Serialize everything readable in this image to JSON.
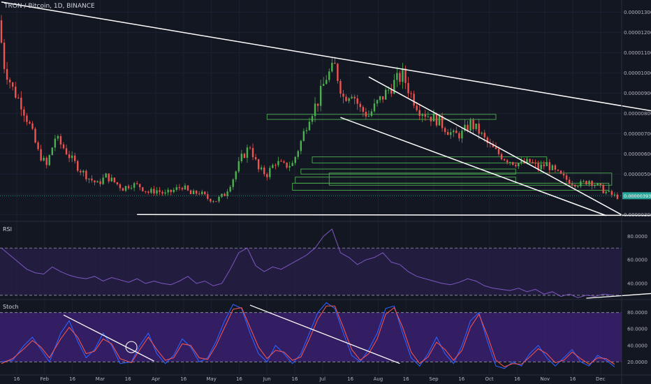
{
  "header": {
    "symbol_label": "TRON / Bitcoin, 1D, BINANCE"
  },
  "panes": {
    "rsi_label": "RSI",
    "stoch_label": "Stoch"
  },
  "colors": {
    "background": "#131722",
    "candle_up": "#26a69a",
    "candle_down": "#ef5350",
    "candle_up_bright": "#4caf50",
    "rsi_line": "#7e57c2",
    "rsi_band_fill": "#2a1f4a",
    "stoch_k": "#2962ff",
    "stoch_d": "#ef5350",
    "stoch_band_fill": "#3a1f6e",
    "trendline": "#ffffff",
    "zone_box": "#4caf50",
    "current_price_badge": "#26a69a"
  },
  "chart_data": {
    "type": "candlestick",
    "x_axis_labels": [
      "16",
      "Feb",
      "16",
      "Mar",
      "16",
      "Apr",
      "16",
      "May",
      "16",
      "Jun",
      "16",
      "Jul",
      "16",
      "Aug",
      "16",
      "Sep",
      "16",
      "Oct",
      "16",
      "Nov",
      "16",
      "Dec"
    ],
    "price_axis": {
      "ticks": [
        "0.00001300",
        "0.00001200",
        "0.00001100",
        "0.00001000",
        "0.00000900",
        "0.00000800",
        "0.00000700",
        "0.00000600",
        "0.00000500",
        "0.00000400",
        "0.00000300"
      ],
      "current_price_label": "0.00000393",
      "ylim": [
        2.7e-06,
        1.36e-05
      ]
    },
    "price_path": [
      [
        0,
        12.6
      ],
      [
        2,
        10.4
      ],
      [
        5,
        9.2
      ],
      [
        8,
        8.5
      ],
      [
        11,
        7.4
      ],
      [
        14,
        6.1
      ],
      [
        17,
        5.4
      ],
      [
        20,
        6.8
      ],
      [
        23,
        6.3
      ],
      [
        26,
        5.7
      ],
      [
        29,
        5.2
      ],
      [
        32,
        4.8
      ],
      [
        35,
        4.5
      ],
      [
        38,
        4.9
      ],
      [
        41,
        4.6
      ],
      [
        44,
        4.3
      ],
      [
        47,
        4.5
      ],
      [
        50,
        4.4
      ],
      [
        53,
        4.1
      ],
      [
        56,
        4.2
      ],
      [
        59,
        4.0
      ],
      [
        62,
        4.2
      ],
      [
        65,
        4.4
      ],
      [
        68,
        4.0
      ],
      [
        71,
        4.1
      ],
      [
        74,
        3.8
      ],
      [
        77,
        3.7
      ],
      [
        80,
        4.0
      ],
      [
        83,
        4.8
      ],
      [
        86,
        5.8
      ],
      [
        89,
        6.4
      ],
      [
        92,
        5.2
      ],
      [
        95,
        5.0
      ],
      [
        98,
        5.6
      ],
      [
        101,
        5.4
      ],
      [
        104,
        5.5
      ],
      [
        107,
        6.6
      ],
      [
        110,
        7.9
      ],
      [
        113,
        8.6
      ],
      [
        116,
        9.8
      ],
      [
        119,
        10.3
      ],
      [
        122,
        8.8
      ],
      [
        125,
        9.1
      ],
      [
        128,
        8.2
      ],
      [
        131,
        7.9
      ],
      [
        134,
        8.5
      ],
      [
        137,
        9.0
      ],
      [
        140,
        9.5
      ],
      [
        143,
        9.9
      ],
      [
        146,
        8.9
      ],
      [
        149,
        8.2
      ],
      [
        152,
        7.9
      ],
      [
        155,
        7.7
      ],
      [
        158,
        7.3
      ],
      [
        161,
        6.9
      ],
      [
        164,
        7.0
      ],
      [
        167,
        7.5
      ],
      [
        170,
        7.1
      ],
      [
        173,
        6.5
      ],
      [
        176,
        6.1
      ],
      [
        179,
        5.8
      ],
      [
        182,
        5.6
      ],
      [
        185,
        5.5
      ],
      [
        188,
        5.6
      ],
      [
        191,
        5.3
      ],
      [
        194,
        5.5
      ],
      [
        197,
        5.1
      ],
      [
        200,
        4.8
      ],
      [
        203,
        4.6
      ],
      [
        206,
        4.5
      ],
      [
        209,
        4.7
      ],
      [
        212,
        4.4
      ],
      [
        215,
        4.1
      ],
      [
        218,
        3.9
      ]
    ],
    "rsi": {
      "levels": [
        "80.0000",
        "60.0000",
        "40.0000"
      ],
      "ylim": [
        27,
        92
      ],
      "upper_band": 70,
      "lower_band": 30,
      "values": [
        [
          0,
          70
        ],
        [
          3,
          64
        ],
        [
          6,
          58
        ],
        [
          9,
          52
        ],
        [
          12,
          49
        ],
        [
          15,
          48
        ],
        [
          18,
          54
        ],
        [
          21,
          50
        ],
        [
          24,
          47
        ],
        [
          27,
          45
        ],
        [
          30,
          44
        ],
        [
          33,
          46
        ],
        [
          36,
          42
        ],
        [
          39,
          45
        ],
        [
          42,
          43
        ],
        [
          45,
          41
        ],
        [
          48,
          44
        ],
        [
          51,
          40
        ],
        [
          54,
          42
        ],
        [
          57,
          40
        ],
        [
          60,
          39
        ],
        [
          63,
          42
        ],
        [
          66,
          46
        ],
        [
          69,
          40
        ],
        [
          72,
          42
        ],
        [
          75,
          38
        ],
        [
          78,
          40
        ],
        [
          81,
          52
        ],
        [
          84,
          66
        ],
        [
          87,
          70
        ],
        [
          90,
          55
        ],
        [
          93,
          50
        ],
        [
          96,
          54
        ],
        [
          99,
          52
        ],
        [
          102,
          56
        ],
        [
          105,
          60
        ],
        [
          108,
          64
        ],
        [
          111,
          70
        ],
        [
          114,
          80
        ],
        [
          117,
          86
        ],
        [
          120,
          66
        ],
        [
          123,
          62
        ],
        [
          126,
          56
        ],
        [
          129,
          60
        ],
        [
          132,
          62
        ],
        [
          135,
          66
        ],
        [
          138,
          58
        ],
        [
          141,
          56
        ],
        [
          144,
          50
        ],
        [
          147,
          46
        ],
        [
          150,
          44
        ],
        [
          153,
          42
        ],
        [
          156,
          40
        ],
        [
          159,
          39
        ],
        [
          162,
          41
        ],
        [
          165,
          44
        ],
        [
          168,
          42
        ],
        [
          171,
          38
        ],
        [
          174,
          36
        ],
        [
          177,
          35
        ],
        [
          180,
          34
        ],
        [
          183,
          36
        ],
        [
          186,
          33
        ],
        [
          189,
          35
        ],
        [
          192,
          31
        ],
        [
          195,
          33
        ],
        [
          198,
          29
        ],
        [
          201,
          31
        ],
        [
          204,
          28
        ],
        [
          207,
          30
        ],
        [
          210,
          29
        ],
        [
          213,
          31
        ],
        [
          216,
          30
        ]
      ]
    },
    "stoch": {
      "levels": [
        "80.0000",
        "60.0000",
        "40.0000",
        "20.0000"
      ],
      "ylim": [
        5,
        95
      ],
      "upper_band": 80,
      "lower_band": 20,
      "k": [
        [
          0,
          20
        ],
        [
          4,
          22
        ],
        [
          8,
          40
        ],
        [
          11,
          50
        ],
        [
          14,
          35
        ],
        [
          17,
          20
        ],
        [
          21,
          55
        ],
        [
          24,
          70
        ],
        [
          27,
          45
        ],
        [
          30,
          25
        ],
        [
          33,
          35
        ],
        [
          36,
          55
        ],
        [
          39,
          40
        ],
        [
          42,
          18
        ],
        [
          46,
          20
        ],
        [
          49,
          40
        ],
        [
          52,
          55
        ],
        [
          55,
          30
        ],
        [
          58,
          18
        ],
        [
          61,
          28
        ],
        [
          64,
          48
        ],
        [
          67,
          38
        ],
        [
          70,
          20
        ],
        [
          73,
          25
        ],
        [
          76,
          45
        ],
        [
          79,
          70
        ],
        [
          82,
          90
        ],
        [
          85,
          85
        ],
        [
          88,
          55
        ],
        [
          91,
          30
        ],
        [
          94,
          20
        ],
        [
          97,
          40
        ],
        [
          100,
          30
        ],
        [
          103,
          18
        ],
        [
          106,
          30
        ],
        [
          109,
          55
        ],
        [
          112,
          80
        ],
        [
          115,
          92
        ],
        [
          118,
          85
        ],
        [
          121,
          55
        ],
        [
          124,
          28
        ],
        [
          127,
          20
        ],
        [
          130,
          35
        ],
        [
          133,
          55
        ],
        [
          136,
          85
        ],
        [
          139,
          88
        ],
        [
          142,
          55
        ],
        [
          145,
          25
        ],
        [
          148,
          15
        ],
        [
          151,
          30
        ],
        [
          154,
          50
        ],
        [
          157,
          30
        ],
        [
          160,
          18
        ],
        [
          163,
          40
        ],
        [
          166,
          70
        ],
        [
          169,
          80
        ],
        [
          172,
          45
        ],
        [
          175,
          15
        ],
        [
          178,
          12
        ],
        [
          181,
          20
        ],
        [
          184,
          15
        ],
        [
          187,
          30
        ],
        [
          190,
          40
        ],
        [
          193,
          25
        ],
        [
          196,
          15
        ],
        [
          199,
          25
        ],
        [
          202,
          35
        ],
        [
          205,
          20
        ],
        [
          208,
          15
        ],
        [
          211,
          28
        ],
        [
          214,
          22
        ],
        [
          217,
          14
        ]
      ],
      "d": [
        [
          0,
          18
        ],
        [
          4,
          24
        ],
        [
          8,
          36
        ],
        [
          11,
          46
        ],
        [
          14,
          38
        ],
        [
          17,
          25
        ],
        [
          21,
          48
        ],
        [
          24,
          62
        ],
        [
          27,
          50
        ],
        [
          30,
          30
        ],
        [
          33,
          33
        ],
        [
          36,
          48
        ],
        [
          39,
          42
        ],
        [
          42,
          24
        ],
        [
          46,
          19
        ],
        [
          49,
          35
        ],
        [
          52,
          50
        ],
        [
          55,
          35
        ],
        [
          58,
          22
        ],
        [
          61,
          25
        ],
        [
          64,
          42
        ],
        [
          67,
          40
        ],
        [
          70,
          25
        ],
        [
          73,
          23
        ],
        [
          76,
          40
        ],
        [
          79,
          62
        ],
        [
          82,
          84
        ],
        [
          85,
          86
        ],
        [
          88,
          62
        ],
        [
          91,
          38
        ],
        [
          94,
          24
        ],
        [
          97,
          34
        ],
        [
          100,
          32
        ],
        [
          103,
          22
        ],
        [
          106,
          26
        ],
        [
          109,
          48
        ],
        [
          112,
          72
        ],
        [
          115,
          88
        ],
        [
          118,
          88
        ],
        [
          121,
          62
        ],
        [
          124,
          35
        ],
        [
          127,
          22
        ],
        [
          130,
          30
        ],
        [
          133,
          48
        ],
        [
          136,
          78
        ],
        [
          139,
          86
        ],
        [
          142,
          62
        ],
        [
          145,
          32
        ],
        [
          148,
          18
        ],
        [
          151,
          26
        ],
        [
          154,
          44
        ],
        [
          157,
          35
        ],
        [
          160,
          22
        ],
        [
          163,
          34
        ],
        [
          166,
          62
        ],
        [
          169,
          78
        ],
        [
          172,
          52
        ],
        [
          175,
          22
        ],
        [
          178,
          14
        ],
        [
          181,
          18
        ],
        [
          184,
          17
        ],
        [
          187,
          26
        ],
        [
          190,
          36
        ],
        [
          193,
          30
        ],
        [
          196,
          19
        ],
        [
          199,
          22
        ],
        [
          202,
          32
        ],
        [
          205,
          24
        ],
        [
          208,
          17
        ],
        [
          211,
          25
        ],
        [
          214,
          24
        ],
        [
          217,
          17
        ]
      ]
    }
  }
}
